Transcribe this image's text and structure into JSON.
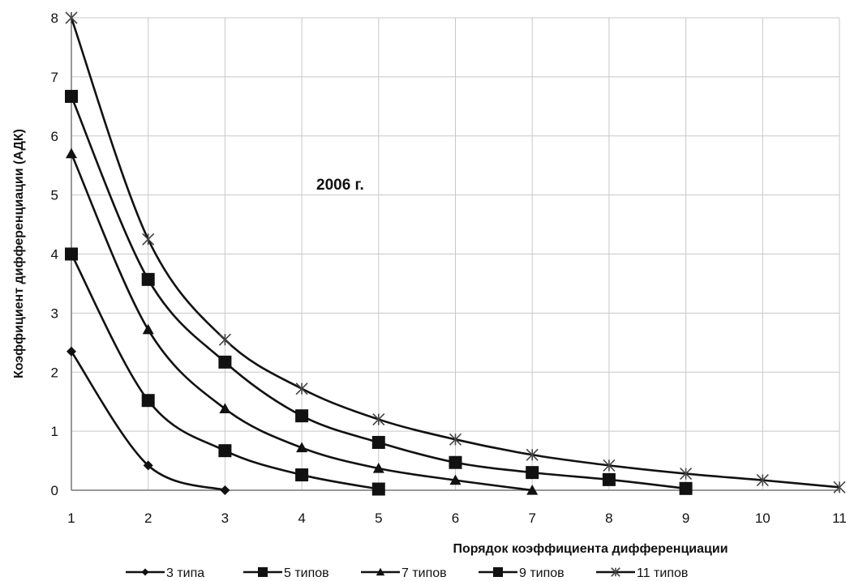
{
  "chart_data": {
    "type": "line",
    "title": "",
    "annotation": "2006 г.",
    "xlabel": "Порядок коэффициента дифференциации",
    "ylabel": "Коэффициент дифференциации (АДК)",
    "xlim": [
      1,
      11
    ],
    "ylim": [
      0,
      8
    ],
    "x_ticks": [
      "1",
      "2",
      "3",
      "4",
      "5",
      "6",
      "7",
      "8",
      "9",
      "10",
      "11"
    ],
    "y_ticks": [
      "0",
      "1",
      "2",
      "3",
      "4",
      "5",
      "6",
      "7",
      "8"
    ],
    "grid": true,
    "legend_position": "bottom",
    "series": [
      {
        "name": "3 типа",
        "marker": "diamond",
        "x": [
          1,
          2,
          3
        ],
        "values": [
          2.35,
          0.42,
          0.0
        ]
      },
      {
        "name": "5 типов",
        "marker": "square",
        "x": [
          1,
          2,
          3,
          4,
          5
        ],
        "values": [
          4.0,
          1.52,
          0.67,
          0.26,
          0.02
        ]
      },
      {
        "name": "7 типов",
        "marker": "triangle",
        "x": [
          1,
          2,
          3,
          4,
          5,
          6,
          7
        ],
        "values": [
          5.7,
          2.72,
          1.38,
          0.72,
          0.37,
          0.17,
          0.0
        ]
      },
      {
        "name": "9 типов",
        "marker": "square",
        "x": [
          1,
          2,
          3,
          4,
          5,
          6,
          7,
          8,
          9
        ],
        "values": [
          6.67,
          3.57,
          2.17,
          1.26,
          0.81,
          0.47,
          0.3,
          0.18,
          0.03
        ]
      },
      {
        "name": "11 типов",
        "marker": "asterisk",
        "x": [
          1,
          2,
          3,
          4,
          5,
          6,
          7,
          8,
          9,
          10,
          11
        ],
        "values": [
          8.0,
          4.25,
          2.55,
          1.72,
          1.2,
          0.86,
          0.6,
          0.42,
          0.28,
          0.17,
          0.05
        ]
      }
    ]
  }
}
